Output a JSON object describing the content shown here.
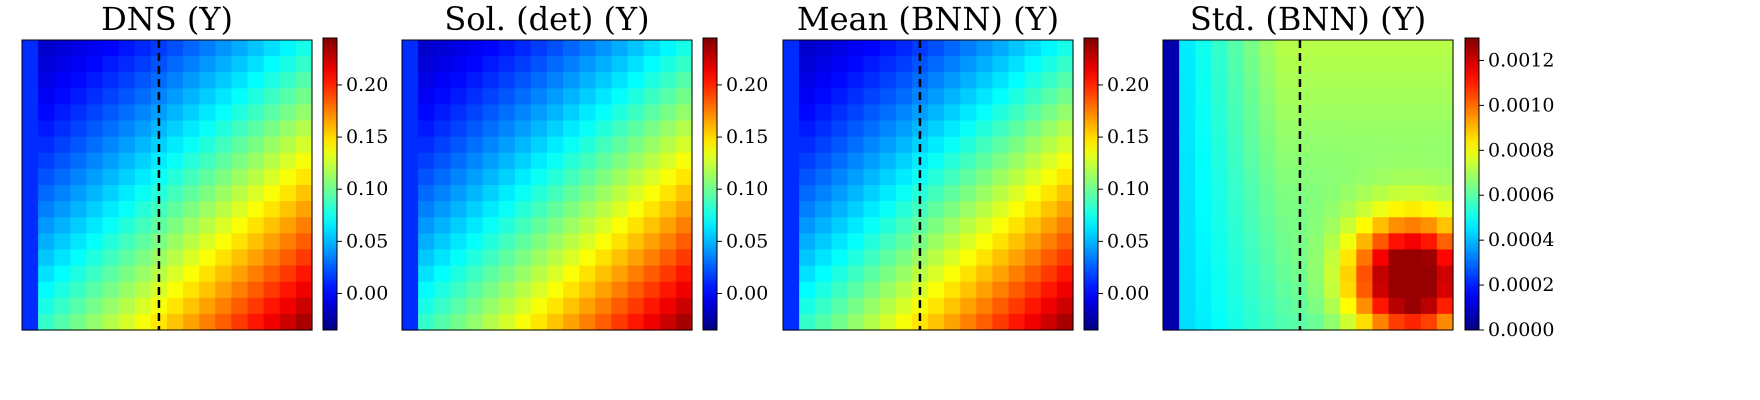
{
  "chart_data": [
    {
      "type": "heatmap",
      "title": "DNS (Y)",
      "grid_size": [
        18,
        18
      ],
      "value_range": [
        -0.035,
        0.245
      ],
      "colorbar_ticks": [
        "0.00",
        "0.05",
        "0.10",
        "0.15",
        "0.20"
      ],
      "colorbar_tick_values": [
        0.0,
        0.05,
        0.1,
        0.15,
        0.2
      ],
      "dashed_vline_at_column": 8.5,
      "colormap": "jet",
      "field": "corner_flow"
    },
    {
      "type": "heatmap",
      "title": "Sol. (det) (Y)",
      "grid_size": [
        18,
        18
      ],
      "value_range": [
        -0.035,
        0.245
      ],
      "colorbar_ticks": [
        "0.00",
        "0.05",
        "0.10",
        "0.15",
        "0.20"
      ],
      "colorbar_tick_values": [
        0.0,
        0.05,
        0.1,
        0.15,
        0.2
      ],
      "dashed_vline_at_column": null,
      "colormap": "jet",
      "field": "corner_flow"
    },
    {
      "type": "heatmap",
      "title": "Mean (BNN) (Y)",
      "grid_size": [
        18,
        18
      ],
      "value_range": [
        -0.035,
        0.245
      ],
      "colorbar_ticks": [
        "0.00",
        "0.05",
        "0.10",
        "0.15",
        "0.20"
      ],
      "colorbar_tick_values": [
        0.0,
        0.05,
        0.1,
        0.15,
        0.2
      ],
      "dashed_vline_at_column": 8.5,
      "colormap": "jet",
      "field": "corner_flow"
    },
    {
      "type": "heatmap",
      "title": "Std. (BNN) (Y)",
      "grid_size": [
        18,
        18
      ],
      "value_range": [
        0.0,
        0.0013
      ],
      "colorbar_ticks": [
        "0.0000",
        "0.0002",
        "0.0004",
        "0.0006",
        "0.0008",
        "0.0010",
        "0.0012"
      ],
      "colorbar_tick_values": [
        0.0,
        0.0002,
        0.0004,
        0.0006,
        0.0008,
        0.001,
        0.0012
      ],
      "dashed_vline_at_column": 8.5,
      "colormap": "jet",
      "field": "uncertainty"
    }
  ]
}
